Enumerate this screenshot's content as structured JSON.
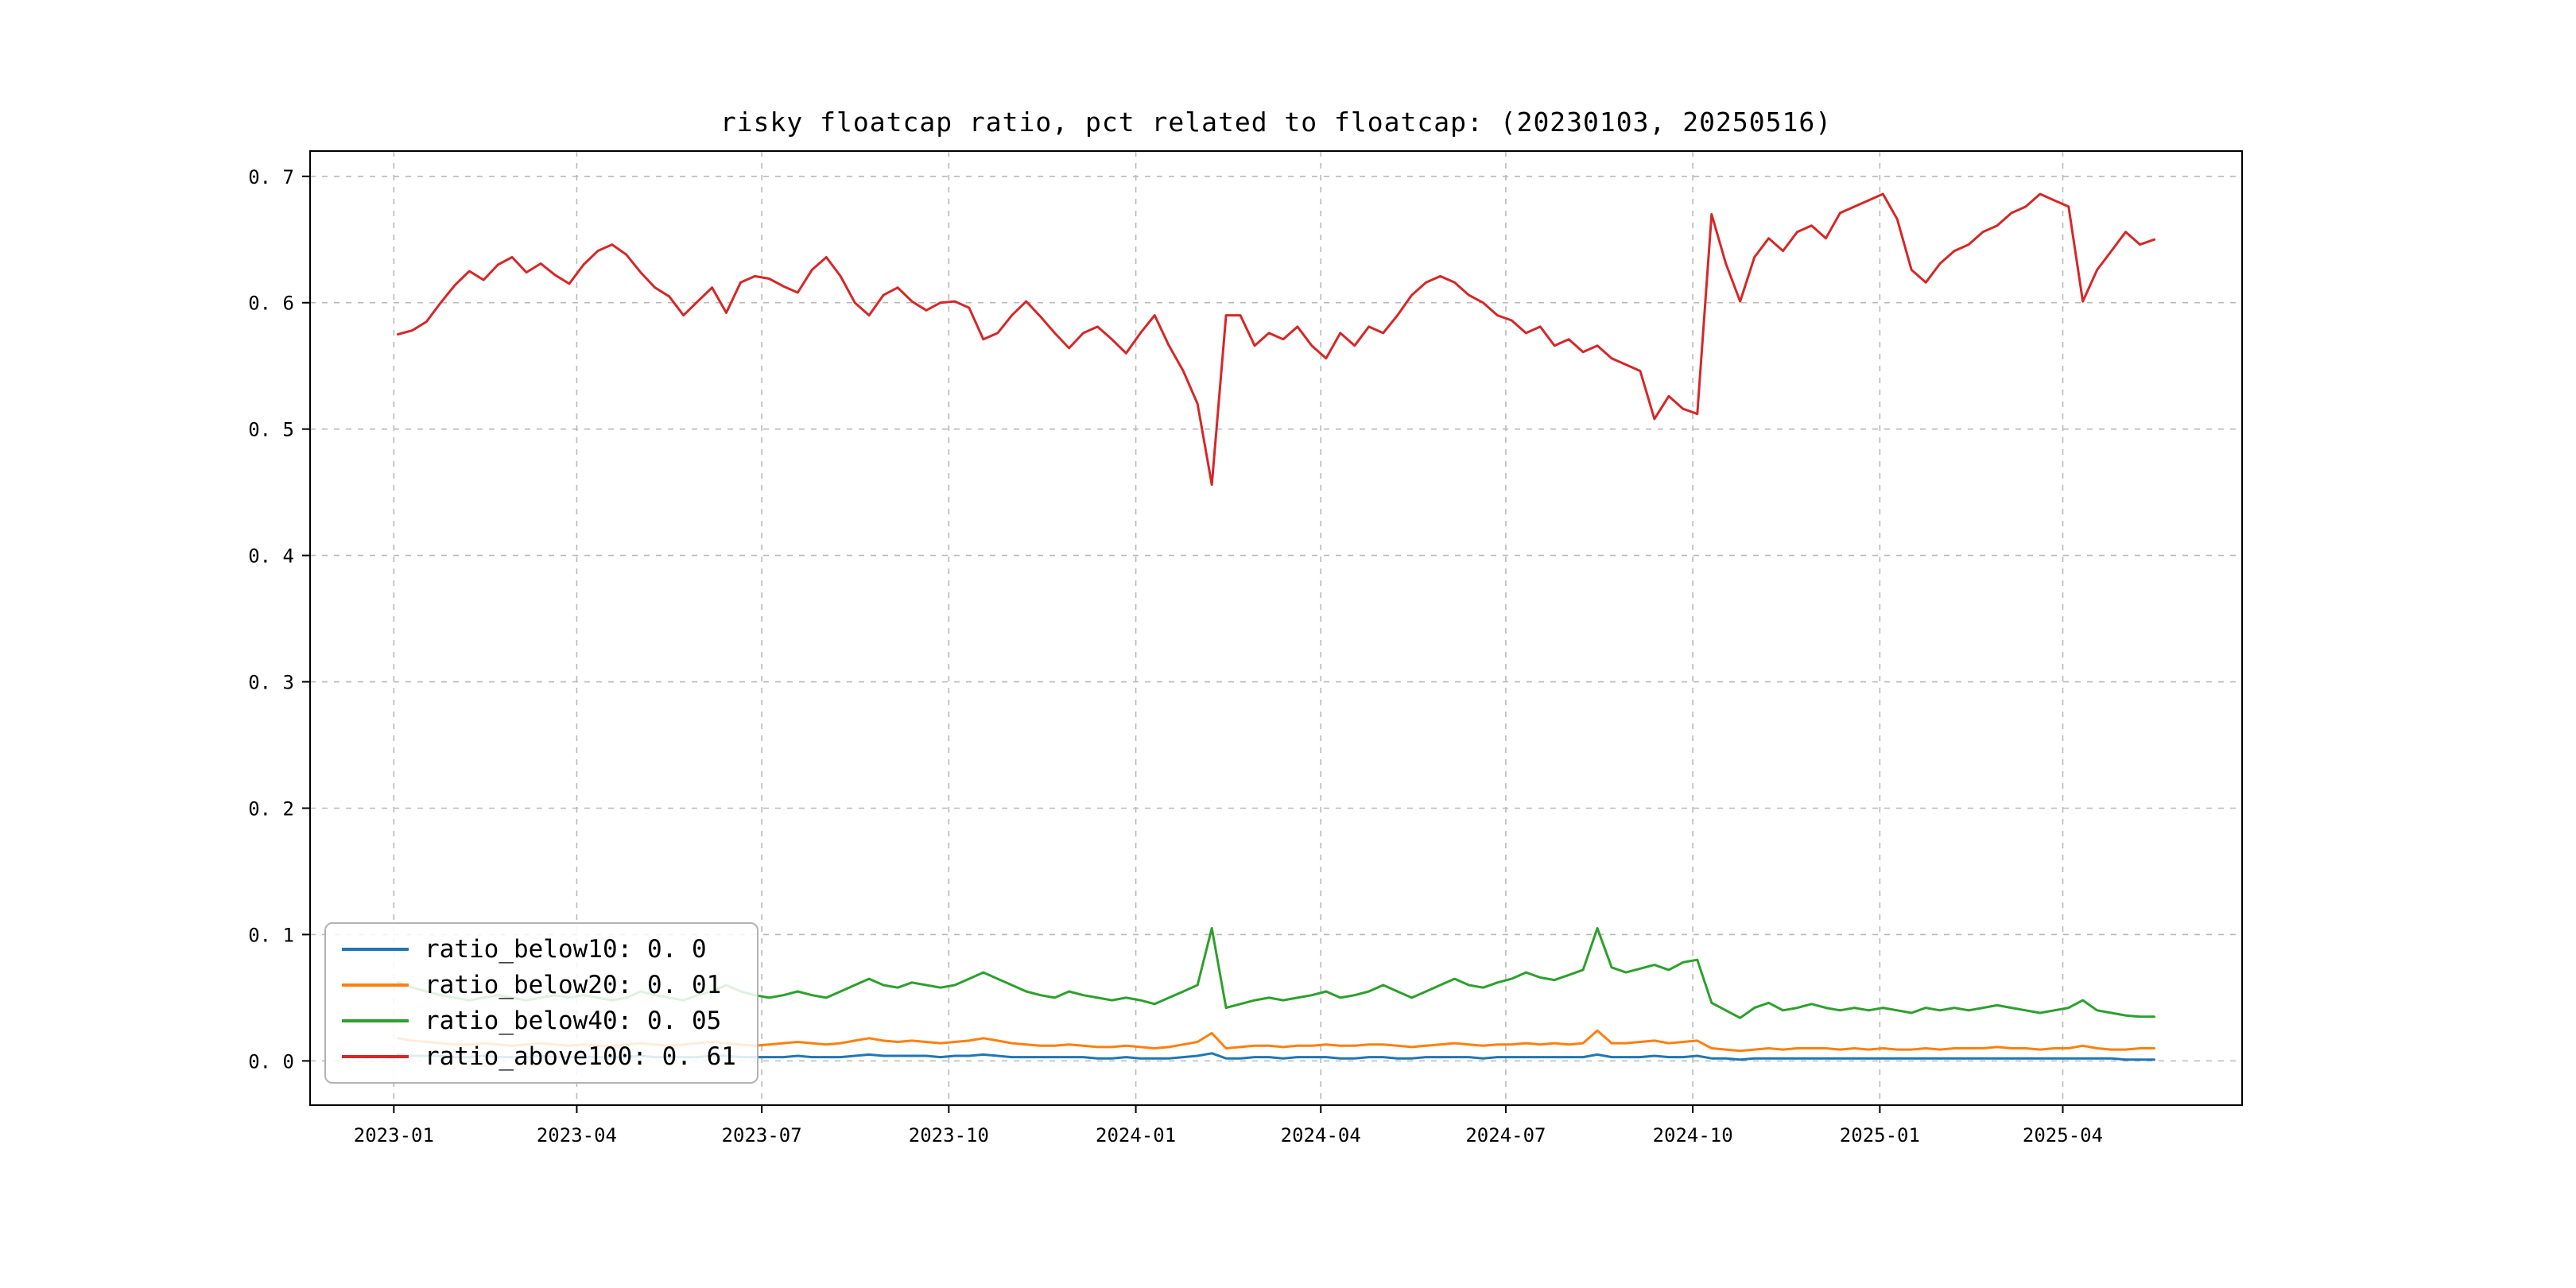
{
  "figure": {
    "background": "#ffffff"
  },
  "chart_data": {
    "type": "line",
    "title": "risky floatcap ratio, pct related to floatcap: (20230103, 20250516)",
    "xlabel": "",
    "ylabel": "",
    "date_range": [
      "20230103",
      "20250516"
    ],
    "grid": {
      "on": true,
      "style": "dashed",
      "color": "#b9b9b9"
    },
    "frame_color": "#000000",
    "x_margin": 0.05,
    "ylim": [
      -0.035,
      0.72
    ],
    "y_ticks": [
      {
        "label": "0. 0",
        "v": 0.0
      },
      {
        "label": "0. 1",
        "v": 0.1
      },
      {
        "label": "0. 2",
        "v": 0.2
      },
      {
        "label": "0. 3",
        "v": 0.3
      },
      {
        "label": "0. 4",
        "v": 0.4
      },
      {
        "label": "0. 5",
        "v": 0.5
      },
      {
        "label": "0. 6",
        "v": 0.6
      },
      {
        "label": "0. 7",
        "v": 0.7
      }
    ],
    "x_ticks": [
      {
        "label": "2023-01",
        "f": -0.00231
      },
      {
        "label": "2023-04",
        "f": 0.10185
      },
      {
        "label": "2023-07",
        "f": 0.20718
      },
      {
        "label": "2023-10",
        "f": 0.31366
      },
      {
        "label": "2024-01",
        "f": 0.42014
      },
      {
        "label": "2024-04",
        "f": 0.52546
      },
      {
        "label": "2024-07",
        "f": 0.63079
      },
      {
        "label": "2024-10",
        "f": 0.73727
      },
      {
        "label": "2025-01",
        "f": 0.84375
      },
      {
        "label": "2025-04",
        "f": 0.94792
      }
    ],
    "legend": {
      "position": "lower left",
      "entries": [
        {
          "label": "ratio_below10: 0. 0",
          "color": "#1f77b4"
        },
        {
          "label": "ratio_below20: 0. 01",
          "color": "#ff7f0e"
        },
        {
          "label": "ratio_below40: 0. 05",
          "color": "#2ca02c"
        },
        {
          "label": "ratio_above100: 0. 61",
          "color": "#d62728"
        }
      ]
    },
    "series": [
      {
        "name": "ratio_below10",
        "color": "#1f77b4",
        "values": [
          0.005,
          0.004,
          0.004,
          0.004,
          0.003,
          0.003,
          0.004,
          0.003,
          0.003,
          0.003,
          0.004,
          0.003,
          0.003,
          0.003,
          0.003,
          0.003,
          0.003,
          0.004,
          0.003,
          0.003,
          0.003,
          0.003,
          0.004,
          0.004,
          0.003,
          0.003,
          0.003,
          0.003,
          0.004,
          0.003,
          0.003,
          0.003,
          0.004,
          0.005,
          0.004,
          0.004,
          0.004,
          0.004,
          0.003,
          0.004,
          0.004,
          0.005,
          0.004,
          0.003,
          0.003,
          0.003,
          0.003,
          0.003,
          0.003,
          0.002,
          0.002,
          0.003,
          0.002,
          0.002,
          0.002,
          0.003,
          0.004,
          0.006,
          0.002,
          0.002,
          0.003,
          0.003,
          0.002,
          0.003,
          0.003,
          0.003,
          0.002,
          0.002,
          0.003,
          0.003,
          0.002,
          0.002,
          0.003,
          0.003,
          0.003,
          0.003,
          0.002,
          0.003,
          0.003,
          0.003,
          0.003,
          0.003,
          0.003,
          0.003,
          0.005,
          0.003,
          0.003,
          0.003,
          0.004,
          0.003,
          0.003,
          0.004,
          0.002,
          0.002,
          0.001,
          0.002,
          0.002,
          0.002,
          0.002,
          0.002,
          0.002,
          0.002,
          0.002,
          0.002,
          0.002,
          0.002,
          0.002,
          0.002,
          0.002,
          0.002,
          0.002,
          0.002,
          0.002,
          0.002,
          0.002,
          0.002,
          0.002,
          0.002,
          0.002,
          0.002,
          0.002,
          0.001,
          0.001,
          0.001
        ]
      },
      {
        "name": "ratio_below20",
        "color": "#ff7f0e",
        "values": [
          0.018,
          0.016,
          0.015,
          0.014,
          0.013,
          0.013,
          0.014,
          0.013,
          0.012,
          0.013,
          0.014,
          0.013,
          0.012,
          0.013,
          0.012,
          0.012,
          0.013,
          0.014,
          0.013,
          0.012,
          0.013,
          0.014,
          0.015,
          0.014,
          0.013,
          0.012,
          0.013,
          0.014,
          0.015,
          0.014,
          0.013,
          0.014,
          0.016,
          0.018,
          0.016,
          0.015,
          0.016,
          0.015,
          0.014,
          0.015,
          0.016,
          0.018,
          0.016,
          0.014,
          0.013,
          0.012,
          0.012,
          0.013,
          0.012,
          0.011,
          0.011,
          0.012,
          0.011,
          0.01,
          0.011,
          0.013,
          0.015,
          0.022,
          0.01,
          0.011,
          0.012,
          0.012,
          0.011,
          0.012,
          0.012,
          0.013,
          0.012,
          0.012,
          0.013,
          0.013,
          0.012,
          0.011,
          0.012,
          0.013,
          0.014,
          0.013,
          0.012,
          0.013,
          0.013,
          0.014,
          0.013,
          0.014,
          0.013,
          0.014,
          0.024,
          0.014,
          0.014,
          0.015,
          0.016,
          0.014,
          0.015,
          0.016,
          0.01,
          0.009,
          0.008,
          0.009,
          0.01,
          0.009,
          0.01,
          0.01,
          0.01,
          0.009,
          0.01,
          0.009,
          0.01,
          0.009,
          0.009,
          0.01,
          0.009,
          0.01,
          0.01,
          0.01,
          0.011,
          0.01,
          0.01,
          0.009,
          0.01,
          0.01,
          0.012,
          0.01,
          0.009,
          0.009,
          0.01,
          0.01
        ]
      },
      {
        "name": "ratio_below40",
        "color": "#2ca02c",
        "values": [
          0.062,
          0.058,
          0.055,
          0.052,
          0.05,
          0.048,
          0.05,
          0.052,
          0.05,
          0.048,
          0.05,
          0.052,
          0.05,
          0.052,
          0.05,
          0.048,
          0.05,
          0.055,
          0.052,
          0.05,
          0.048,
          0.052,
          0.055,
          0.06,
          0.055,
          0.052,
          0.05,
          0.052,
          0.055,
          0.052,
          0.05,
          0.055,
          0.06,
          0.065,
          0.06,
          0.058,
          0.062,
          0.06,
          0.058,
          0.06,
          0.065,
          0.07,
          0.065,
          0.06,
          0.055,
          0.052,
          0.05,
          0.055,
          0.052,
          0.05,
          0.048,
          0.05,
          0.048,
          0.045,
          0.05,
          0.055,
          0.06,
          0.105,
          0.042,
          0.045,
          0.048,
          0.05,
          0.048,
          0.05,
          0.052,
          0.055,
          0.05,
          0.052,
          0.055,
          0.06,
          0.055,
          0.05,
          0.055,
          0.06,
          0.065,
          0.06,
          0.058,
          0.062,
          0.065,
          0.07,
          0.066,
          0.064,
          0.068,
          0.072,
          0.105,
          0.074,
          0.07,
          0.073,
          0.076,
          0.072,
          0.078,
          0.08,
          0.046,
          0.04,
          0.034,
          0.042,
          0.046,
          0.04,
          0.042,
          0.045,
          0.042,
          0.04,
          0.042,
          0.04,
          0.042,
          0.04,
          0.038,
          0.042,
          0.04,
          0.042,
          0.04,
          0.042,
          0.044,
          0.042,
          0.04,
          0.038,
          0.04,
          0.042,
          0.048,
          0.04,
          0.038,
          0.036,
          0.035,
          0.035
        ]
      },
      {
        "name": "ratio_above100",
        "color": "#d62728",
        "values": [
          0.575,
          0.578,
          0.585,
          0.6,
          0.614,
          0.625,
          0.618,
          0.63,
          0.636,
          0.624,
          0.631,
          0.622,
          0.615,
          0.63,
          0.641,
          0.646,
          0.638,
          0.624,
          0.612,
          0.605,
          0.59,
          0.601,
          0.612,
          0.592,
          0.616,
          0.621,
          0.619,
          0.613,
          0.608,
          0.626,
          0.636,
          0.621,
          0.6,
          0.59,
          0.606,
          0.612,
          0.601,
          0.594,
          0.6,
          0.601,
          0.596,
          0.571,
          0.576,
          0.59,
          0.601,
          0.589,
          0.576,
          0.564,
          0.576,
          0.581,
          0.571,
          0.56,
          0.576,
          0.59,
          0.566,
          0.546,
          0.52,
          0.456,
          0.59,
          0.59,
          0.566,
          0.576,
          0.571,
          0.581,
          0.566,
          0.556,
          0.576,
          0.566,
          0.581,
          0.576,
          0.59,
          0.606,
          0.616,
          0.621,
          0.616,
          0.606,
          0.6,
          0.59,
          0.586,
          0.576,
          0.581,
          0.566,
          0.571,
          0.561,
          0.566,
          0.556,
          0.551,
          0.546,
          0.508,
          0.526,
          0.516,
          0.512,
          0.67,
          0.631,
          0.601,
          0.636,
          0.651,
          0.641,
          0.656,
          0.661,
          0.651,
          0.671,
          0.676,
          0.681,
          0.686,
          0.666,
          0.626,
          0.616,
          0.631,
          0.641,
          0.646,
          0.656,
          0.661,
          0.671,
          0.676,
          0.686,
          0.681,
          0.676,
          0.601,
          0.626,
          0.641,
          0.656,
          0.646,
          0.65
        ]
      }
    ]
  }
}
